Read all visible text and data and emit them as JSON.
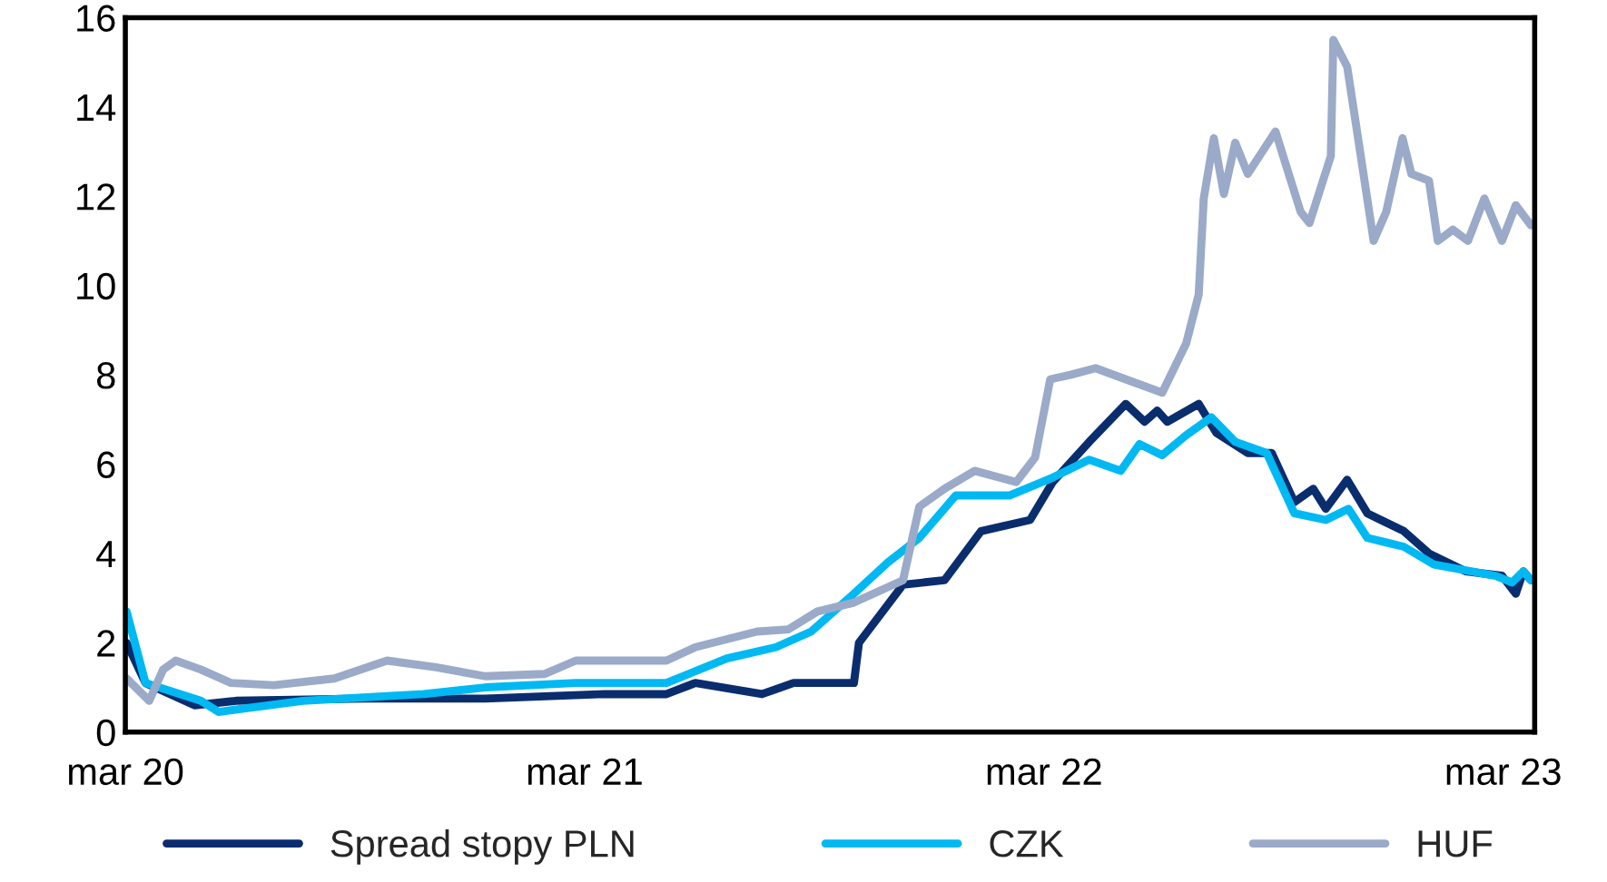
{
  "chart_data": {
    "type": "line",
    "xlim": [
      "2020-03-01",
      "2023-03-26"
    ],
    "xticks": [
      {
        "value": "2020-03-01",
        "label": "mar 20"
      },
      {
        "value": "2021-03-01",
        "label": "mar 21"
      },
      {
        "value": "2022-03-01",
        "label": "mar 22"
      },
      {
        "value": "2023-03-01",
        "label": "mar 23"
      }
    ],
    "ylim": [
      0,
      16
    ],
    "yticks": [
      0,
      2,
      4,
      6,
      8,
      10,
      12,
      14,
      16
    ],
    "grid": false,
    "legend": "bottom",
    "marker": "none",
    "line_style": "solid",
    "series": [
      {
        "name": "Spread stopy PLN",
        "color": "#0a2d6e",
        "x": [
          "2020-03-02",
          "2020-03-17",
          "2020-04-25",
          "2020-05-28",
          "2020-09-06",
          "2020-12-12",
          "2021-03-17",
          "2021-05-05",
          "2021-05-28",
          "2021-07-20",
          "2021-08-14",
          "2021-10-01",
          "2021-10-05",
          "2021-11-09",
          "2021-12-12",
          "2022-01-10",
          "2022-02-18",
          "2022-03-08",
          "2022-04-06",
          "2022-05-05",
          "2022-05-20",
          "2022-05-30",
          "2022-06-07",
          "2022-07-02",
          "2022-07-16",
          "2022-08-10",
          "2022-08-29",
          "2022-09-16",
          "2022-10-01",
          "2022-10-11",
          "2022-10-28",
          "2022-11-13",
          "2022-12-12",
          "2023-01-01",
          "2023-01-30",
          "2023-02-28",
          "2023-03-11",
          "2023-03-17",
          "2023-03-23"
        ],
        "values": [
          2.0,
          1.1,
          0.6,
          0.7,
          0.75,
          0.75,
          0.85,
          0.85,
          1.1,
          0.85,
          1.1,
          1.1,
          2.0,
          3.3,
          3.4,
          4.5,
          4.75,
          5.6,
          6.5,
          7.35,
          6.95,
          7.2,
          6.95,
          7.35,
          6.7,
          6.25,
          6.25,
          5.15,
          5.45,
          5.0,
          5.65,
          4.9,
          4.5,
          4.0,
          3.6,
          3.5,
          3.1,
          3.6,
          3.4
        ]
      },
      {
        "name": "CZK",
        "color": "#00b9f2",
        "x": [
          "2020-03-02",
          "2020-03-17",
          "2020-04-30",
          "2020-05-14",
          "2020-07-20",
          "2020-10-24",
          "2020-12-12",
          "2021-02-22",
          "2021-05-05",
          "2021-06-22",
          "2021-07-31",
          "2021-08-28",
          "2021-10-01",
          "2021-10-28",
          "2021-11-22",
          "2021-12-21",
          "2022-02-02",
          "2022-03-08",
          "2022-04-06",
          "2022-05-01",
          "2022-05-16",
          "2022-06-03",
          "2022-06-22",
          "2022-07-12",
          "2022-07-31",
          "2022-08-25",
          "2022-09-16",
          "2022-10-11",
          "2022-10-29",
          "2022-11-13",
          "2022-12-12",
          "2023-01-05",
          "2023-02-23",
          "2023-03-08",
          "2023-03-17",
          "2023-03-23"
        ],
        "values": [
          2.7,
          1.1,
          0.7,
          0.45,
          0.7,
          0.85,
          1.0,
          1.1,
          1.1,
          1.65,
          1.9,
          2.25,
          3.1,
          3.8,
          4.35,
          5.3,
          5.3,
          5.7,
          6.1,
          5.85,
          6.45,
          6.2,
          6.65,
          7.05,
          6.5,
          6.25,
          4.9,
          4.75,
          5.0,
          4.35,
          4.15,
          3.75,
          3.5,
          3.35,
          3.6,
          3.4
        ]
      },
      {
        "name": "HUF",
        "color": "#9aaac8",
        "x": [
          "2020-03-02",
          "2020-03-20",
          "2020-03-31",
          "2020-04-10",
          "2020-04-30",
          "2020-05-24",
          "2020-06-27",
          "2020-08-14",
          "2020-09-25",
          "2020-11-03",
          "2020-12-12",
          "2021-01-28",
          "2021-02-22",
          "2021-05-05",
          "2021-05-28",
          "2021-07-16",
          "2021-08-10",
          "2021-09-02",
          "2021-10-01",
          "2021-11-09",
          "2021-11-22",
          "2021-12-12",
          "2022-01-05",
          "2022-02-07",
          "2022-02-22",
          "2022-03-06",
          "2022-03-22",
          "2022-04-11",
          "2022-05-05",
          "2022-06-03",
          "2022-06-22",
          "2022-07-02",
          "2022-07-06",
          "2022-07-14",
          "2022-07-22",
          "2022-07-31",
          "2022-08-10",
          "2022-09-01",
          "2022-09-21",
          "2022-09-28",
          "2022-10-15",
          "2022-10-17",
          "2022-10-28",
          "2022-11-07",
          "2022-11-18",
          "2022-11-28",
          "2022-12-11",
          "2022-12-18",
          "2023-01-01",
          "2023-01-08",
          "2023-01-20",
          "2023-02-01",
          "2023-02-14",
          "2023-02-28",
          "2023-03-11",
          "2023-03-23"
        ],
        "values": [
          1.2,
          0.7,
          1.4,
          1.6,
          1.4,
          1.1,
          1.05,
          1.2,
          1.6,
          1.45,
          1.25,
          1.3,
          1.6,
          1.6,
          1.9,
          2.25,
          2.3,
          2.7,
          2.9,
          3.4,
          5.05,
          5.45,
          5.85,
          5.6,
          6.15,
          7.9,
          8.0,
          8.15,
          7.9,
          7.6,
          8.7,
          9.8,
          11.95,
          13.3,
          12.05,
          13.2,
          12.5,
          13.45,
          11.65,
          11.4,
          12.9,
          15.5,
          14.9,
          13.05,
          11.0,
          11.65,
          13.3,
          12.5,
          12.35,
          11.0,
          11.25,
          11.0,
          11.95,
          11.0,
          11.8,
          11.35
        ]
      }
    ]
  }
}
